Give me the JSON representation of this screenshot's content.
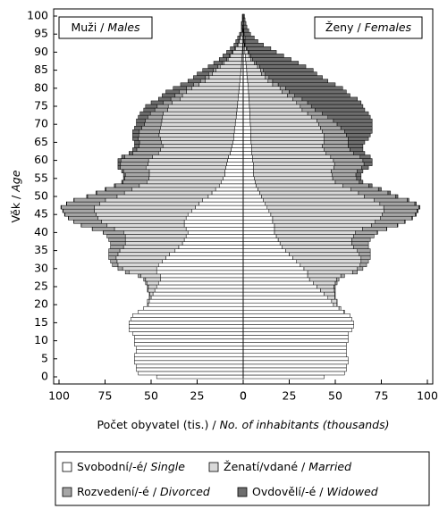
{
  "chart_data": {
    "type": "population_pyramid",
    "y_label_cz": "Věk /",
    "y_label_en": "Age",
    "x_label_cz": "Počet obyvatel (tis.) /",
    "x_label_en": "No. of inhabitants (thousands)",
    "panels": [
      {
        "cz": "Muži /",
        "en": "Males"
      },
      {
        "cz": "Ženy /",
        "en": "Females"
      }
    ],
    "xlim": [
      0,
      100
    ],
    "xticks": [
      0,
      25,
      50,
      75,
      100
    ],
    "ylim": [
      0,
      100
    ],
    "yticks": [
      0,
      5,
      10,
      15,
      20,
      25,
      30,
      35,
      40,
      45,
      50,
      55,
      60,
      65,
      70,
      75,
      80,
      85,
      90,
      95,
      100
    ],
    "y": [
      0,
      1,
      2,
      3,
      4,
      5,
      6,
      7,
      8,
      9,
      10,
      11,
      12,
      13,
      14,
      15,
      16,
      17,
      18,
      19,
      20,
      21,
      22,
      23,
      24,
      25,
      26,
      27,
      28,
      29,
      30,
      31,
      32,
      33,
      34,
      35,
      36,
      37,
      38,
      39,
      40,
      41,
      42,
      43,
      44,
      45,
      46,
      47,
      48,
      49,
      50,
      51,
      52,
      53,
      54,
      55,
      56,
      57,
      58,
      59,
      60,
      61,
      62,
      63,
      64,
      65,
      66,
      67,
      68,
      69,
      70,
      71,
      72,
      73,
      74,
      75,
      76,
      77,
      78,
      79,
      80,
      81,
      82,
      83,
      84,
      85,
      86,
      87,
      88,
      89,
      90,
      91,
      92,
      93,
      94,
      95,
      96,
      97,
      98,
      99,
      100
    ],
    "series": [
      {
        "name_cz": "Svobodní/-é/",
        "name_en": "Single",
        "color": "#ffffff",
        "males": [
          47,
          57,
          58,
          58,
          59,
          59,
          59,
          58,
          58,
          59,
          59,
          59,
          60,
          62,
          62,
          62,
          61,
          60,
          57,
          54,
          51.5,
          51,
          50,
          49,
          48,
          47,
          46,
          45,
          45,
          47,
          47,
          46,
          44,
          42,
          40,
          37,
          35,
          33,
          32,
          31,
          30,
          31,
          32,
          32,
          31,
          30,
          28,
          26,
          24,
          22,
          19,
          17,
          15,
          13,
          12,
          11,
          10,
          10,
          9.5,
          9,
          8.5,
          8,
          7,
          6.5,
          6,
          5.5,
          5.2,
          5,
          4.8,
          4.5,
          4.3,
          4,
          3.8,
          3.6,
          3.4,
          3.2,
          3,
          2.8,
          2.6,
          2.4,
          2.2,
          2,
          1.8,
          1.6,
          1.4,
          1.2,
          1,
          0.9,
          0.7,
          0.6,
          0.5,
          0.4,
          0.3,
          0.2,
          0.2,
          0.1,
          0.1,
          0.1,
          0.1,
          0,
          0
        ],
        "females": [
          44,
          55,
          56,
          56,
          57,
          57,
          56,
          56,
          56,
          56,
          57,
          57,
          57,
          59,
          60,
          60,
          59,
          58,
          54.5,
          52,
          49,
          48,
          46,
          44,
          42,
          40,
          38,
          36,
          35,
          35,
          33,
          31,
          29,
          27,
          25,
          23,
          21,
          20,
          19,
          18,
          17,
          17,
          17,
          16,
          16,
          15,
          14,
          13,
          12,
          11,
          10,
          9,
          8,
          7,
          6.5,
          6,
          5.5,
          5.5,
          5.5,
          5.5,
          5,
          5,
          4.5,
          4.5,
          4.5,
          4.3,
          4.2,
          4.1,
          4,
          4,
          3.9,
          3.8,
          3.7,
          3.6,
          3.5,
          3.4,
          3.3,
          3.2,
          3,
          2.9,
          2.8,
          2.6,
          2.4,
          2.2,
          2,
          1.9,
          1.7,
          1.5,
          1.3,
          1.1,
          0.9,
          0.8,
          0.6,
          0.4,
          0.3,
          0.2,
          0.2,
          0.1,
          0.1,
          0.1,
          0
        ]
      },
      {
        "name_cz": "Ženatí/vdané /",
        "name_en": "Married",
        "color": "#d9d9d9",
        "males": [
          0,
          0,
          0,
          0,
          0,
          0,
          0,
          0,
          0,
          0,
          0,
          0,
          0,
          0,
          0,
          0,
          0,
          0,
          0,
          0,
          0.5,
          1,
          0.9,
          1.8,
          3.7,
          4.5,
          6.3,
          8,
          10.5,
          15,
          18.5,
          22,
          24.5,
          27,
          28,
          30,
          30,
          31,
          32,
          33,
          34.9,
          38.9,
          41.9,
          44.9,
          47.9,
          49.8,
          52.8,
          54.8,
          53.8,
          52.8,
          49.5,
          47.5,
          45.5,
          43.4,
          40.3,
          40.2,
          41,
          41,
          43.3,
          42.6,
          42.9,
          41.2,
          39,
          38.3,
          37.6,
          38.8,
          39.8,
          40.7,
          40.6,
          40.5,
          40.3,
          40.2,
          40,
          39.8,
          37.6,
          37.5,
          35.5,
          31.5,
          30.4,
          28.4,
          25.6,
          22,
          18.9,
          16.9,
          15.4,
          13.5,
          11.5,
          9.4,
          7.5,
          6.3,
          5.1,
          3.8,
          2.5,
          2,
          1.5,
          0.9,
          0.2,
          0.4,
          0.5,
          0.2,
          0.2
        ],
        "females": [
          0,
          0,
          0,
          0,
          0,
          0,
          0,
          0,
          0,
          0,
          0,
          0,
          0,
          0,
          0,
          0,
          0,
          0,
          0.5,
          1,
          1.9,
          2.9,
          3.8,
          5.7,
          7.5,
          9.3,
          12,
          14.6,
          18,
          24.5,
          29,
          32.5,
          35,
          37,
          38,
          39,
          39,
          39,
          40,
          42,
          43.8,
          47.8,
          52.7,
          55.7,
          58.6,
          60.5,
          62.4,
          63.3,
          62.2,
          60,
          55.8,
          53.6,
          50.4,
          47.2,
          43.5,
          42.6,
          42.7,
          42.3,
          43.7,
          44.1,
          44,
          42.5,
          40.5,
          39.5,
          38.5,
          39.7,
          39.8,
          39.9,
          39,
          38,
          37.1,
          36.2,
          33.3,
          31.4,
          28.5,
          27.6,
          25.7,
          23.8,
          21,
          18.1,
          17.2,
          13.4,
          11.1,
          9.8,
          8,
          7.6,
          6.1,
          4.5,
          2.9,
          2.3,
          1.7,
          0.9,
          0.2,
          0.4,
          0.6,
          0.2,
          0.2,
          0.1,
          0.1,
          0,
          0.1
        ]
      },
      {
        "name_cz": "Rozvedení/-é /",
        "name_en": "Divorced",
        "color": "#a6a6a6",
        "males": [
          0,
          0,
          0,
          0,
          0,
          0,
          0,
          0,
          0,
          0,
          0,
          0,
          0,
          0,
          0,
          0,
          0,
          0,
          0,
          0,
          0,
          0,
          0.1,
          0.2,
          0.3,
          0.5,
          0.7,
          1,
          1.5,
          2,
          2.5,
          3,
          3.5,
          4,
          5,
          6,
          7,
          8,
          9,
          10,
          11,
          12,
          14,
          15,
          16,
          17,
          17,
          18,
          18,
          17,
          16,
          15,
          14,
          13,
          13,
          13,
          13,
          14,
          14,
          15,
          15,
          15,
          14,
          13,
          13,
          12,
          12,
          11,
          11,
          10,
          9,
          9,
          8,
          7,
          7,
          6,
          5,
          5,
          4,
          4,
          3,
          3,
          2.5,
          2,
          2,
          1.5,
          1.2,
          1,
          0.8,
          0.6,
          0.4,
          0.3,
          0.2,
          0.2,
          0.1,
          0.1,
          0.1,
          0,
          0,
          0,
          0
        ],
        "females": [
          0,
          0,
          0,
          0,
          0,
          0,
          0,
          0,
          0,
          0,
          0,
          0,
          0,
          0,
          0,
          0,
          0,
          0,
          0,
          0,
          0.1,
          0.1,
          0.2,
          0.3,
          0.5,
          0.7,
          1,
          1.4,
          2,
          2.5,
          3,
          3.5,
          4,
          5,
          6,
          7,
          8,
          9,
          10,
          11,
          12,
          13,
          14,
          16,
          17,
          18,
          18,
          19,
          19,
          18,
          17,
          16,
          15,
          14,
          13,
          13,
          13,
          14,
          15,
          16,
          16,
          16,
          15,
          14,
          14,
          13,
          13,
          12,
          12,
          11,
          10,
          9,
          9,
          8,
          7,
          6,
          6,
          5,
          4,
          4,
          3,
          3,
          2.5,
          2,
          2,
          1.5,
          1.2,
          1,
          0.8,
          0.6,
          0.4,
          0.3,
          0.2,
          0.2,
          0.1,
          0.1,
          0,
          0,
          0,
          0,
          0
        ]
      },
      {
        "name_cz": "Ovdovělí/-é /",
        "name_en": "Widowed",
        "color": "#6e6e6e",
        "males": [
          0,
          0,
          0,
          0,
          0,
          0,
          0,
          0,
          0,
          0,
          0,
          0,
          0,
          0,
          0,
          0,
          0,
          0,
          0,
          0,
          0,
          0,
          0,
          0,
          0,
          0,
          0,
          0,
          0,
          0,
          0,
          0,
          0,
          0,
          0,
          0,
          0,
          0,
          0,
          0,
          0.1,
          0.1,
          0.1,
          0.1,
          0.1,
          0.2,
          0.2,
          0.2,
          0.2,
          0.2,
          0.5,
          0.5,
          0.5,
          0.6,
          0.7,
          0.8,
          1,
          1,
          1.2,
          1.4,
          1.6,
          1.8,
          2,
          2.2,
          2.4,
          2.7,
          3,
          3.3,
          3.6,
          4,
          4.4,
          4.8,
          5.2,
          5.6,
          6,
          6.3,
          6.5,
          6.7,
          7,
          7.2,
          7.2,
          7,
          6.8,
          6.5,
          6.2,
          5.8,
          5.3,
          4.7,
          4,
          3.5,
          3,
          2.5,
          2,
          1.6,
          1.2,
          0.9,
          0.6,
          0.5,
          0.4,
          0.3,
          0.3
        ],
        "females": [
          0,
          0,
          0,
          0,
          0,
          0,
          0,
          0,
          0,
          0,
          0,
          0,
          0,
          0,
          0,
          0,
          0,
          0,
          0,
          0,
          0,
          0,
          0,
          0,
          0,
          0,
          0,
          0,
          0,
          0,
          0,
          0,
          0,
          0,
          0,
          0,
          0,
          0,
          0,
          0,
          0.2,
          0.2,
          0.3,
          0.3,
          0.4,
          0.5,
          0.6,
          0.7,
          0.8,
          1,
          1.2,
          1.4,
          1.6,
          1.8,
          2,
          2.4,
          2.8,
          3.2,
          3.8,
          4.4,
          5,
          5.5,
          6,
          7,
          8,
          9,
          11,
          13,
          15,
          17,
          19,
          21,
          23,
          25,
          27,
          28,
          29,
          30,
          30,
          31,
          31,
          31,
          30,
          29,
          28,
          27,
          25,
          23,
          21,
          18,
          15,
          13,
          10,
          7,
          5,
          3.5,
          2.6,
          1.8,
          1.3,
          0.9,
          0.6
        ]
      }
    ]
  }
}
